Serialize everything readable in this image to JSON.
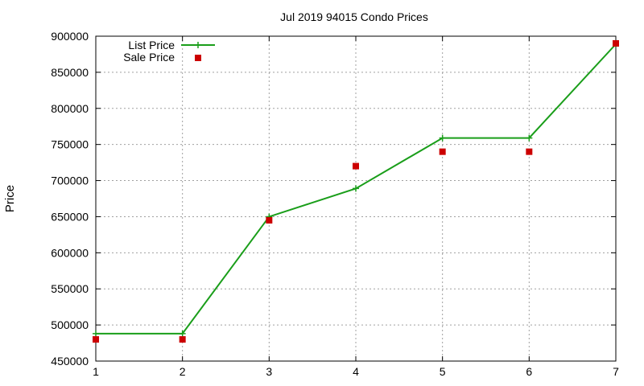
{
  "chart_data": {
    "type": "line",
    "title": "Jul 2019 94015 Condo Prices",
    "xlabel": "",
    "ylabel": "Price",
    "x": [
      1,
      2,
      3,
      4,
      5,
      6,
      7
    ],
    "xlim": [
      1,
      7
    ],
    "ylim": [
      450000,
      900000
    ],
    "xticks": [
      "1",
      "2",
      "3",
      "4",
      "5",
      "6",
      "7"
    ],
    "yticks": [
      "450000",
      "500000",
      "550000",
      "600000",
      "650000",
      "700000",
      "750000",
      "800000",
      "850000",
      "900000"
    ],
    "grid": true,
    "legend_position": "top-left",
    "series": [
      {
        "name": "List Price",
        "style": "line+points",
        "marker": "plus",
        "color": "#1a9e1a",
        "values": [
          488000,
          488000,
          650000,
          689000,
          759000,
          759000,
          889000
        ]
      },
      {
        "name": "Sale Price",
        "style": "points",
        "marker": "square",
        "color": "#cc0000",
        "values": [
          480000,
          480000,
          645000,
          720000,
          740000,
          740000,
          890000
        ]
      }
    ]
  }
}
